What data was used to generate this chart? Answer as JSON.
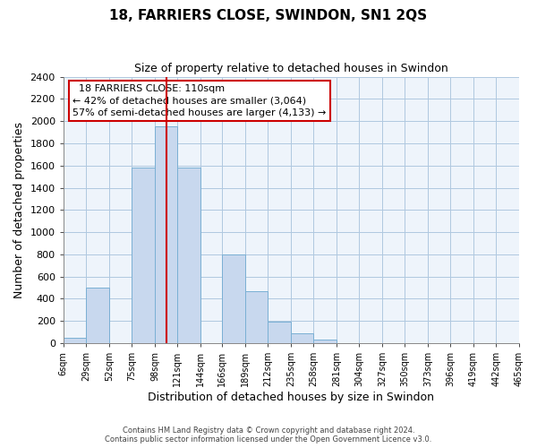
{
  "title": "18, FARRIERS CLOSE, SWINDON, SN1 2QS",
  "subtitle": "Size of property relative to detached houses in Swindon",
  "xlabel": "Distribution of detached houses by size in Swindon",
  "ylabel": "Number of detached properties",
  "bar_color": "#c8d8ee",
  "bar_edge_color": "#7ab0d4",
  "background_color": "#ffffff",
  "plot_bg_color": "#eef4fb",
  "grid_color": "#b0c8e0",
  "vline_x": 110,
  "vline_color": "#cc0000",
  "bin_edges": [
    6,
    29,
    52,
    75,
    98,
    121,
    144,
    166,
    189,
    212,
    235,
    258,
    281,
    304,
    327,
    350,
    373,
    396,
    419,
    442,
    465
  ],
  "bin_labels": [
    "6sqm",
    "29sqm",
    "52sqm",
    "75sqm",
    "98sqm",
    "121sqm",
    "144sqm",
    "166sqm",
    "189sqm",
    "212sqm",
    "235sqm",
    "258sqm",
    "281sqm",
    "304sqm",
    "327sqm",
    "350sqm",
    "373sqm",
    "396sqm",
    "419sqm",
    "442sqm",
    "465sqm"
  ],
  "bar_heights": [
    50,
    500,
    0,
    1580,
    1950,
    1580,
    0,
    800,
    470,
    190,
    90,
    30,
    0,
    0,
    0,
    0,
    0,
    0,
    0,
    0
  ],
  "ylim": [
    0,
    2400
  ],
  "yticks": [
    0,
    200,
    400,
    600,
    800,
    1000,
    1200,
    1400,
    1600,
    1800,
    2000,
    2200,
    2400
  ],
  "annotation_title": "18 FARRIERS CLOSE: 110sqm",
  "annotation_line1": "← 42% of detached houses are smaller (3,064)",
  "annotation_line2": "57% of semi-detached houses are larger (4,133) →",
  "annotation_box_color": "#ffffff",
  "annotation_box_edge": "#cc0000",
  "footer_line1": "Contains HM Land Registry data © Crown copyright and database right 2024.",
  "footer_line2": "Contains public sector information licensed under the Open Government Licence v3.0."
}
